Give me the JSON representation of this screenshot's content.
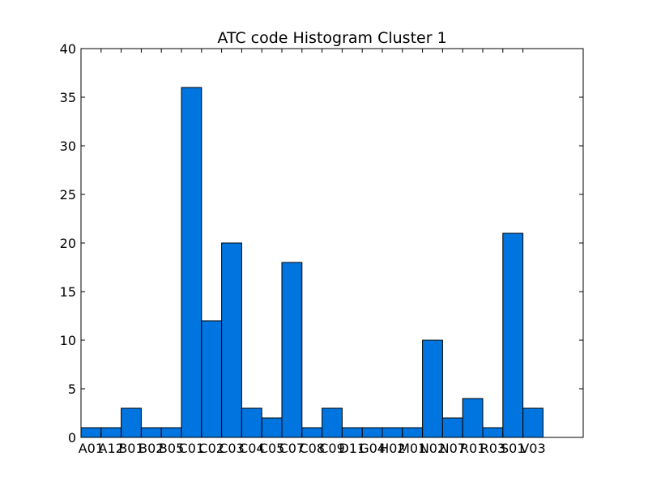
{
  "chart_data": {
    "type": "bar",
    "title": "ATC code Histogram Cluster 1",
    "xlabel": "",
    "ylabel": "",
    "categories": [
      "A01",
      "A12",
      "B01",
      "B02",
      "B05",
      "C01",
      "C02",
      "C03",
      "C04",
      "C05",
      "C07",
      "C08",
      "C09",
      "D11",
      "G04",
      "H02",
      "M01",
      "N02",
      "N07",
      "R01",
      "R03",
      "S01",
      "V03"
    ],
    "values": [
      1,
      1,
      3,
      1,
      1,
      36,
      12,
      20,
      3,
      2,
      18,
      1,
      3,
      1,
      1,
      1,
      1,
      10,
      2,
      4,
      1,
      21,
      3
    ],
    "ylim": [
      0,
      40
    ],
    "yticks": [
      0,
      5,
      10,
      15,
      20,
      25,
      30,
      35,
      40
    ],
    "bar_color": "#0074df",
    "edge_color": "#000000",
    "grid": false,
    "legend": "none"
  }
}
